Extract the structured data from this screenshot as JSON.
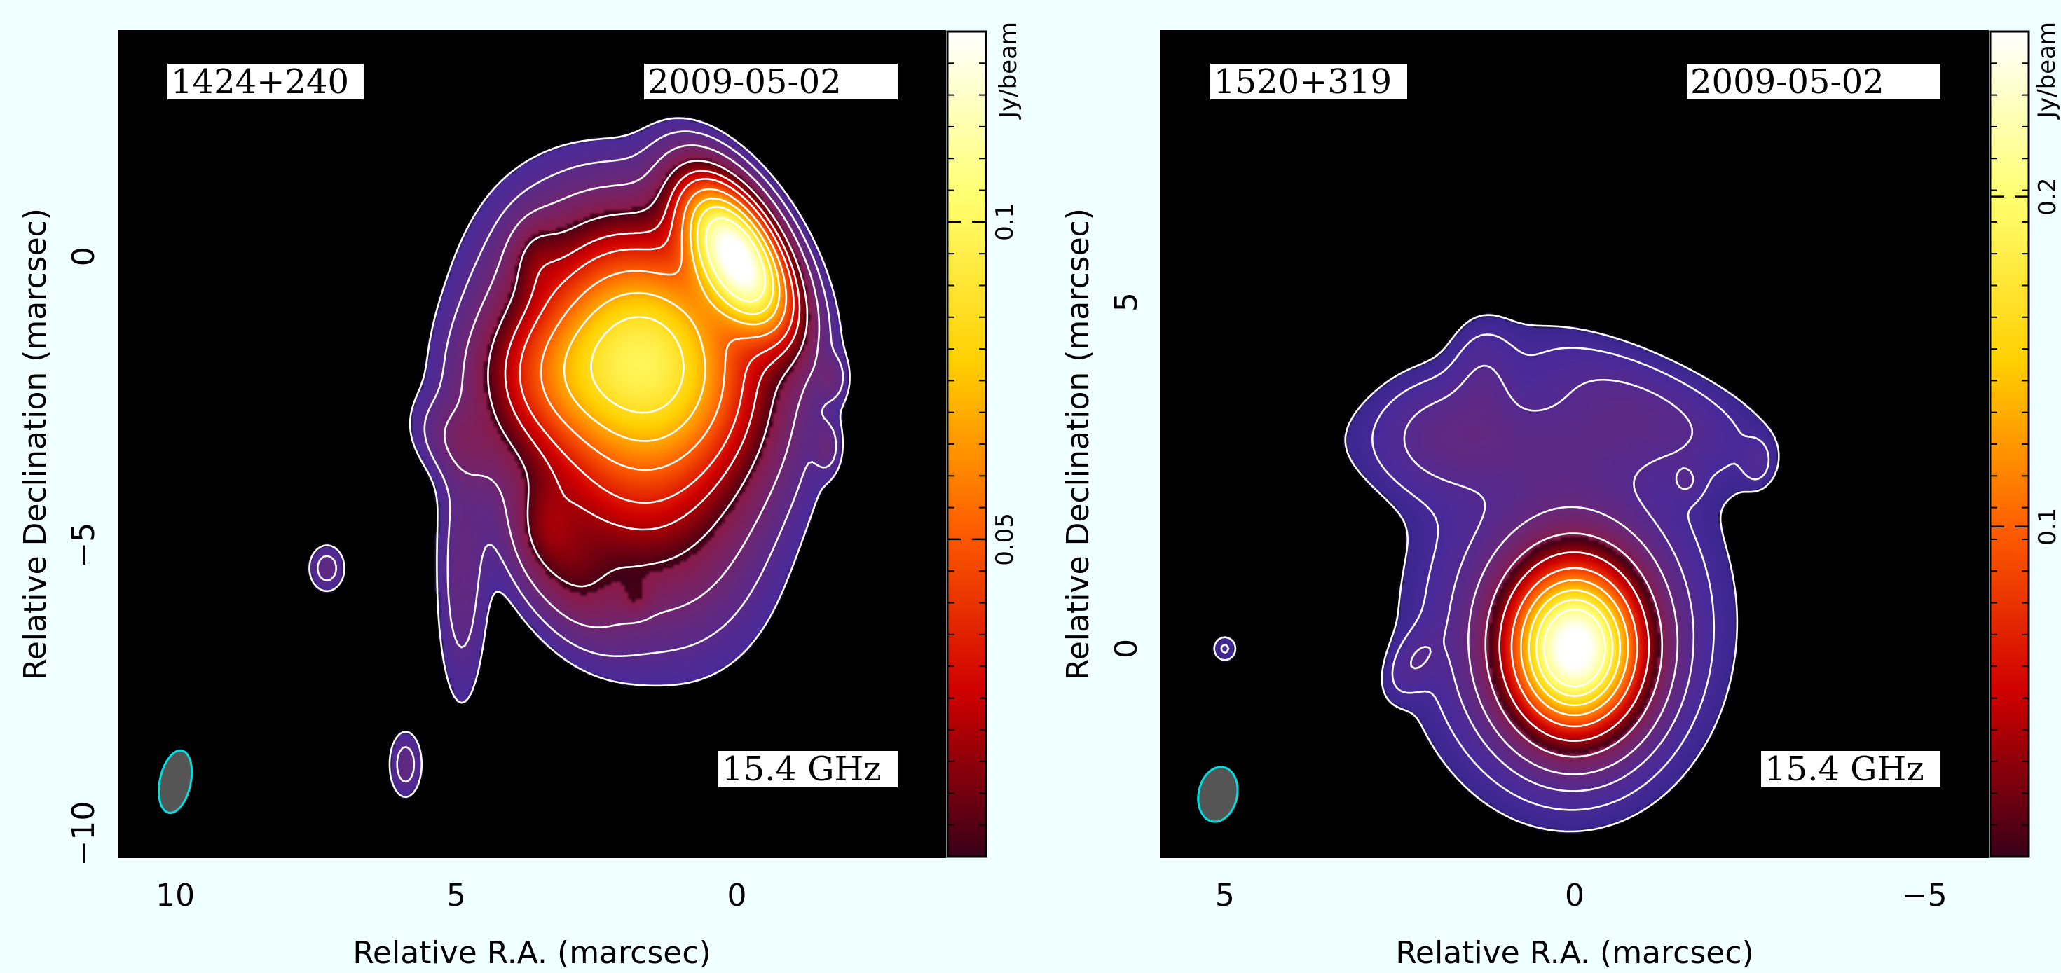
{
  "chart_data": [
    {
      "type": "heatmap",
      "source_label": "1424+240",
      "date_label": "2009-05-02",
      "frequency_label": "15.4 GHz",
      "xlabel": "Relative R.A. (marcsec)",
      "ylabel": "Relative Declination (marcsec)",
      "xlim": [
        11,
        -3.7
      ],
      "ylim": [
        -10.4,
        3.9
      ],
      "x_ticks": [
        10,
        5,
        0
      ],
      "y_ticks": [
        0,
        -5,
        -10
      ],
      "colorbar": {
        "label": "Jy/beam",
        "range": [
          0,
          0.13
        ],
        "ticks": [
          0.05,
          0.1
        ],
        "colormap": [
          "#3a0018",
          "#d00000",
          "#ff6000",
          "#ffd000",
          "#ffff70",
          "#ffffff"
        ]
      },
      "beam": {
        "x": 10,
        "y": -9.1,
        "major": 1.1,
        "minor": 0.55,
        "color": "#555555",
        "edge": "#00e0e0"
      },
      "components": [
        {
          "x": 0,
          "y": 0,
          "peak": 0.13,
          "sx": 0.45,
          "sy": 0.9,
          "rot": -30
        },
        {
          "x": 1.4,
          "y": -1.6,
          "peak": 0.07,
          "sx": 1.1,
          "sy": 1.4,
          "rot": -30
        },
        {
          "x": 2.1,
          "y": -3.1,
          "peak": 0.035,
          "sx": 1.2,
          "sy": 1.9,
          "rot": -20
        },
        {
          "x": 3.3,
          "y": -2.1,
          "peak": 0.02,
          "sx": 0.9,
          "sy": 0.8,
          "rot": 0
        },
        {
          "x": 3.1,
          "y": -5.3,
          "peak": 0.012,
          "sx": 0.5,
          "sy": 0.9,
          "rot": -30
        },
        {
          "x": 5.0,
          "y": -3.2,
          "peak": 0.006,
          "sx": 0.55,
          "sy": 0.4,
          "rot": 40
        },
        {
          "x": 3.6,
          "y": 0.0,
          "peak": 0.007,
          "sx": 0.3,
          "sy": 0.45,
          "rot": 0
        },
        {
          "x": 4.9,
          "y": -5.6,
          "peak": 0.006,
          "sx": 0.3,
          "sy": 1.5,
          "rot": 0
        },
        {
          "x": 3.4,
          "y": -4.6,
          "peak": 0.006,
          "sx": 0.3,
          "sy": 0.5,
          "rot": 0
        },
        {
          "x": 7.3,
          "y": -5.4,
          "peak": 0.006,
          "sx": 0.22,
          "sy": 0.28,
          "rot": 0
        },
        {
          "x": 5.9,
          "y": -8.8,
          "peak": 0.006,
          "sx": 0.2,
          "sy": 0.4,
          "rot": 0
        },
        {
          "x": -1.7,
          "y": -2.1,
          "peak": 0.005,
          "sx": 0.16,
          "sy": 0.25,
          "rot": 0
        },
        {
          "x": -1.6,
          "y": -3.3,
          "peak": 0.005,
          "sx": 0.15,
          "sy": 0.28,
          "rot": 0
        },
        {
          "x": 1.8,
          "y": -5.9,
          "peak": 0.005,
          "sx": 0.18,
          "sy": 0.22,
          "rot": 0
        }
      ],
      "contour_levels": [
        0.0022,
        0.0045,
        0.009,
        0.018,
        0.027,
        0.036,
        0.05,
        0.065,
        0.08,
        0.1
      ]
    },
    {
      "type": "heatmap",
      "source_label": "1520+319",
      "date_label": "2009-05-02",
      "frequency_label": "15.4 GHz",
      "xlabel": "Relative R.A. (marcsec)",
      "ylabel": "Relative Declination (marcsec)",
      "xlim": [
        5.9,
        -5.9
      ],
      "ylim": [
        -3,
        8.9
      ],
      "x_ticks": [
        5,
        0,
        -5
      ],
      "y_ticks": [
        5,
        0
      ],
      "colorbar": {
        "label": "Jy/beam",
        "range": [
          0,
          0.25
        ],
        "ticks": [
          0.1,
          0.2
        ],
        "colormap": [
          "#3a0018",
          "#d00000",
          "#ff6000",
          "#ffd000",
          "#ffff70",
          "#ffffff"
        ]
      },
      "beam": {
        "x": 5.1,
        "y": -2.1,
        "major": 0.8,
        "minor": 0.55,
        "color": "#555555",
        "edge": "#00e0e0"
      },
      "components": [
        {
          "x": 0,
          "y": 0,
          "peak": 0.25,
          "sx": 0.55,
          "sy": 0.7,
          "rot": 0
        },
        {
          "x": 0.1,
          "y": 0.4,
          "peak": 0.02,
          "sx": 1.1,
          "sy": 1.35,
          "rot": 0
        },
        {
          "x": 0.5,
          "y": 3.0,
          "peak": 0.006,
          "sx": 1.6,
          "sy": 0.5,
          "rot": 0
        },
        {
          "x": 1.9,
          "y": 3.1,
          "peak": 0.006,
          "sx": 0.6,
          "sy": 0.6,
          "rot": 0
        },
        {
          "x": -0.8,
          "y": 3.6,
          "peak": 0.006,
          "sx": 1.2,
          "sy": 0.45,
          "rot": 25
        },
        {
          "x": 1.3,
          "y": 3.9,
          "peak": 0.005,
          "sx": 0.3,
          "sy": 0.5,
          "rot": 0
        },
        {
          "x": -2.6,
          "y": 2.7,
          "peak": 0.004,
          "sx": 0.13,
          "sy": 0.2,
          "rot": 0
        },
        {
          "x": -1.6,
          "y": 2.4,
          "peak": 0.004,
          "sx": 0.15,
          "sy": 0.17,
          "rot": 0
        },
        {
          "x": 2.3,
          "y": -0.2,
          "peak": 0.005,
          "sx": 0.2,
          "sy": 0.35,
          "rot": 30
        },
        {
          "x": 5.0,
          "y": 0.0,
          "peak": 0.004,
          "sx": 0.12,
          "sy": 0.13,
          "rot": 0
        }
      ],
      "contour_levels": [
        0.0018,
        0.0036,
        0.0072,
        0.014,
        0.028,
        0.05,
        0.08,
        0.11,
        0.14,
        0.17,
        0.2
      ]
    }
  ]
}
